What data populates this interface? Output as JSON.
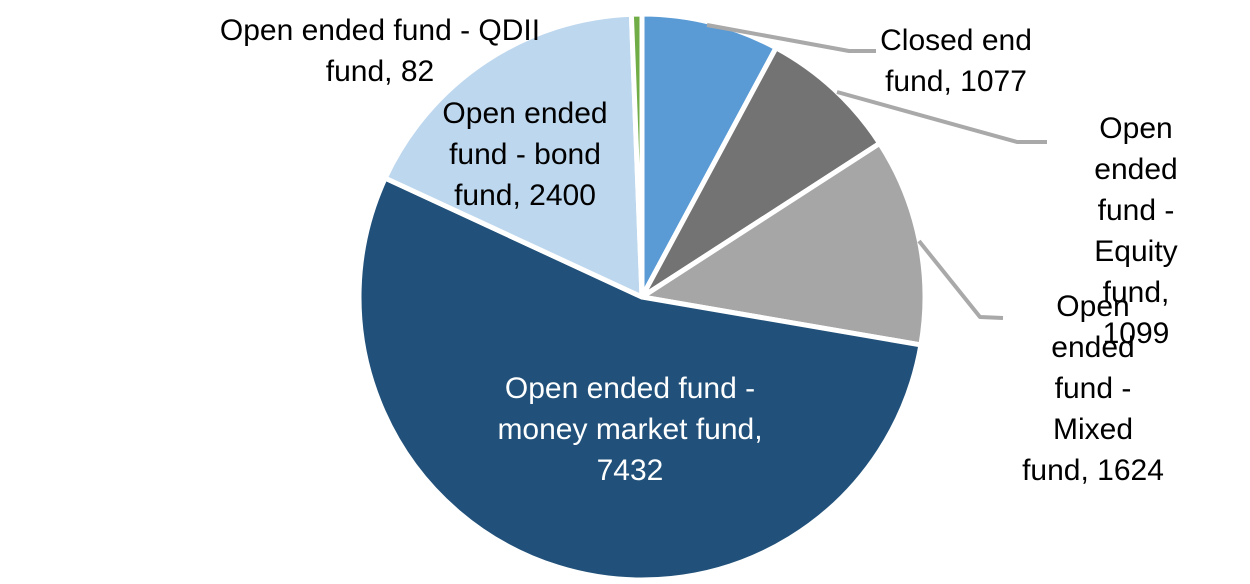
{
  "chart_data": {
    "type": "pie",
    "title": "",
    "legend_position": "none",
    "total": 13714,
    "start_angle_deg": 0,
    "direction": "clockwise",
    "slices": [
      {
        "id": "closed-end-fund",
        "label": "Closed end fund",
        "value": 1077,
        "color": "#5B9BD5"
      },
      {
        "id": "open-ended-equity-fund",
        "label": "Open ended fund - Equity fund",
        "value": 1099,
        "color": "#737373"
      },
      {
        "id": "open-ended-mixed-fund",
        "label": "Open ended fund - Mixed fund",
        "value": 1624,
        "color": "#A6A6A6"
      },
      {
        "id": "open-ended-money-market-fund",
        "label": "Open ended fund - money market fund",
        "value": 7432,
        "color": "#21517A"
      },
      {
        "id": "open-ended-bond-fund",
        "label": "Open ended fund - bond fund",
        "value": 2400,
        "color": "#BDD7EE"
      },
      {
        "id": "open-ended-qdii-fund",
        "label": "Open ended fund - QDII fund",
        "value": 82,
        "color": "#70AD47"
      }
    ],
    "data_labels": {
      "qdii": "Open ended fund - QDII\nfund, 82",
      "bond": "Open ended\nfund - bond\nfund, 2400",
      "closed_end": "Closed end\nfund, 1077",
      "equity": "Open ended\nfund - Equity\nfund, 1099",
      "mixed": "Open ended\nfund - Mixed\nfund, 1624",
      "money_market": "Open ended fund -\nmoney market fund,\n7432"
    },
    "styles": {
      "background": "#FFFFFF",
      "slice_separator_color": "#FFFFFF",
      "leader_line_color": "#A9A9A9",
      "label_text_color": "#000000",
      "money_market_label_color": "#FFFFFF"
    }
  }
}
